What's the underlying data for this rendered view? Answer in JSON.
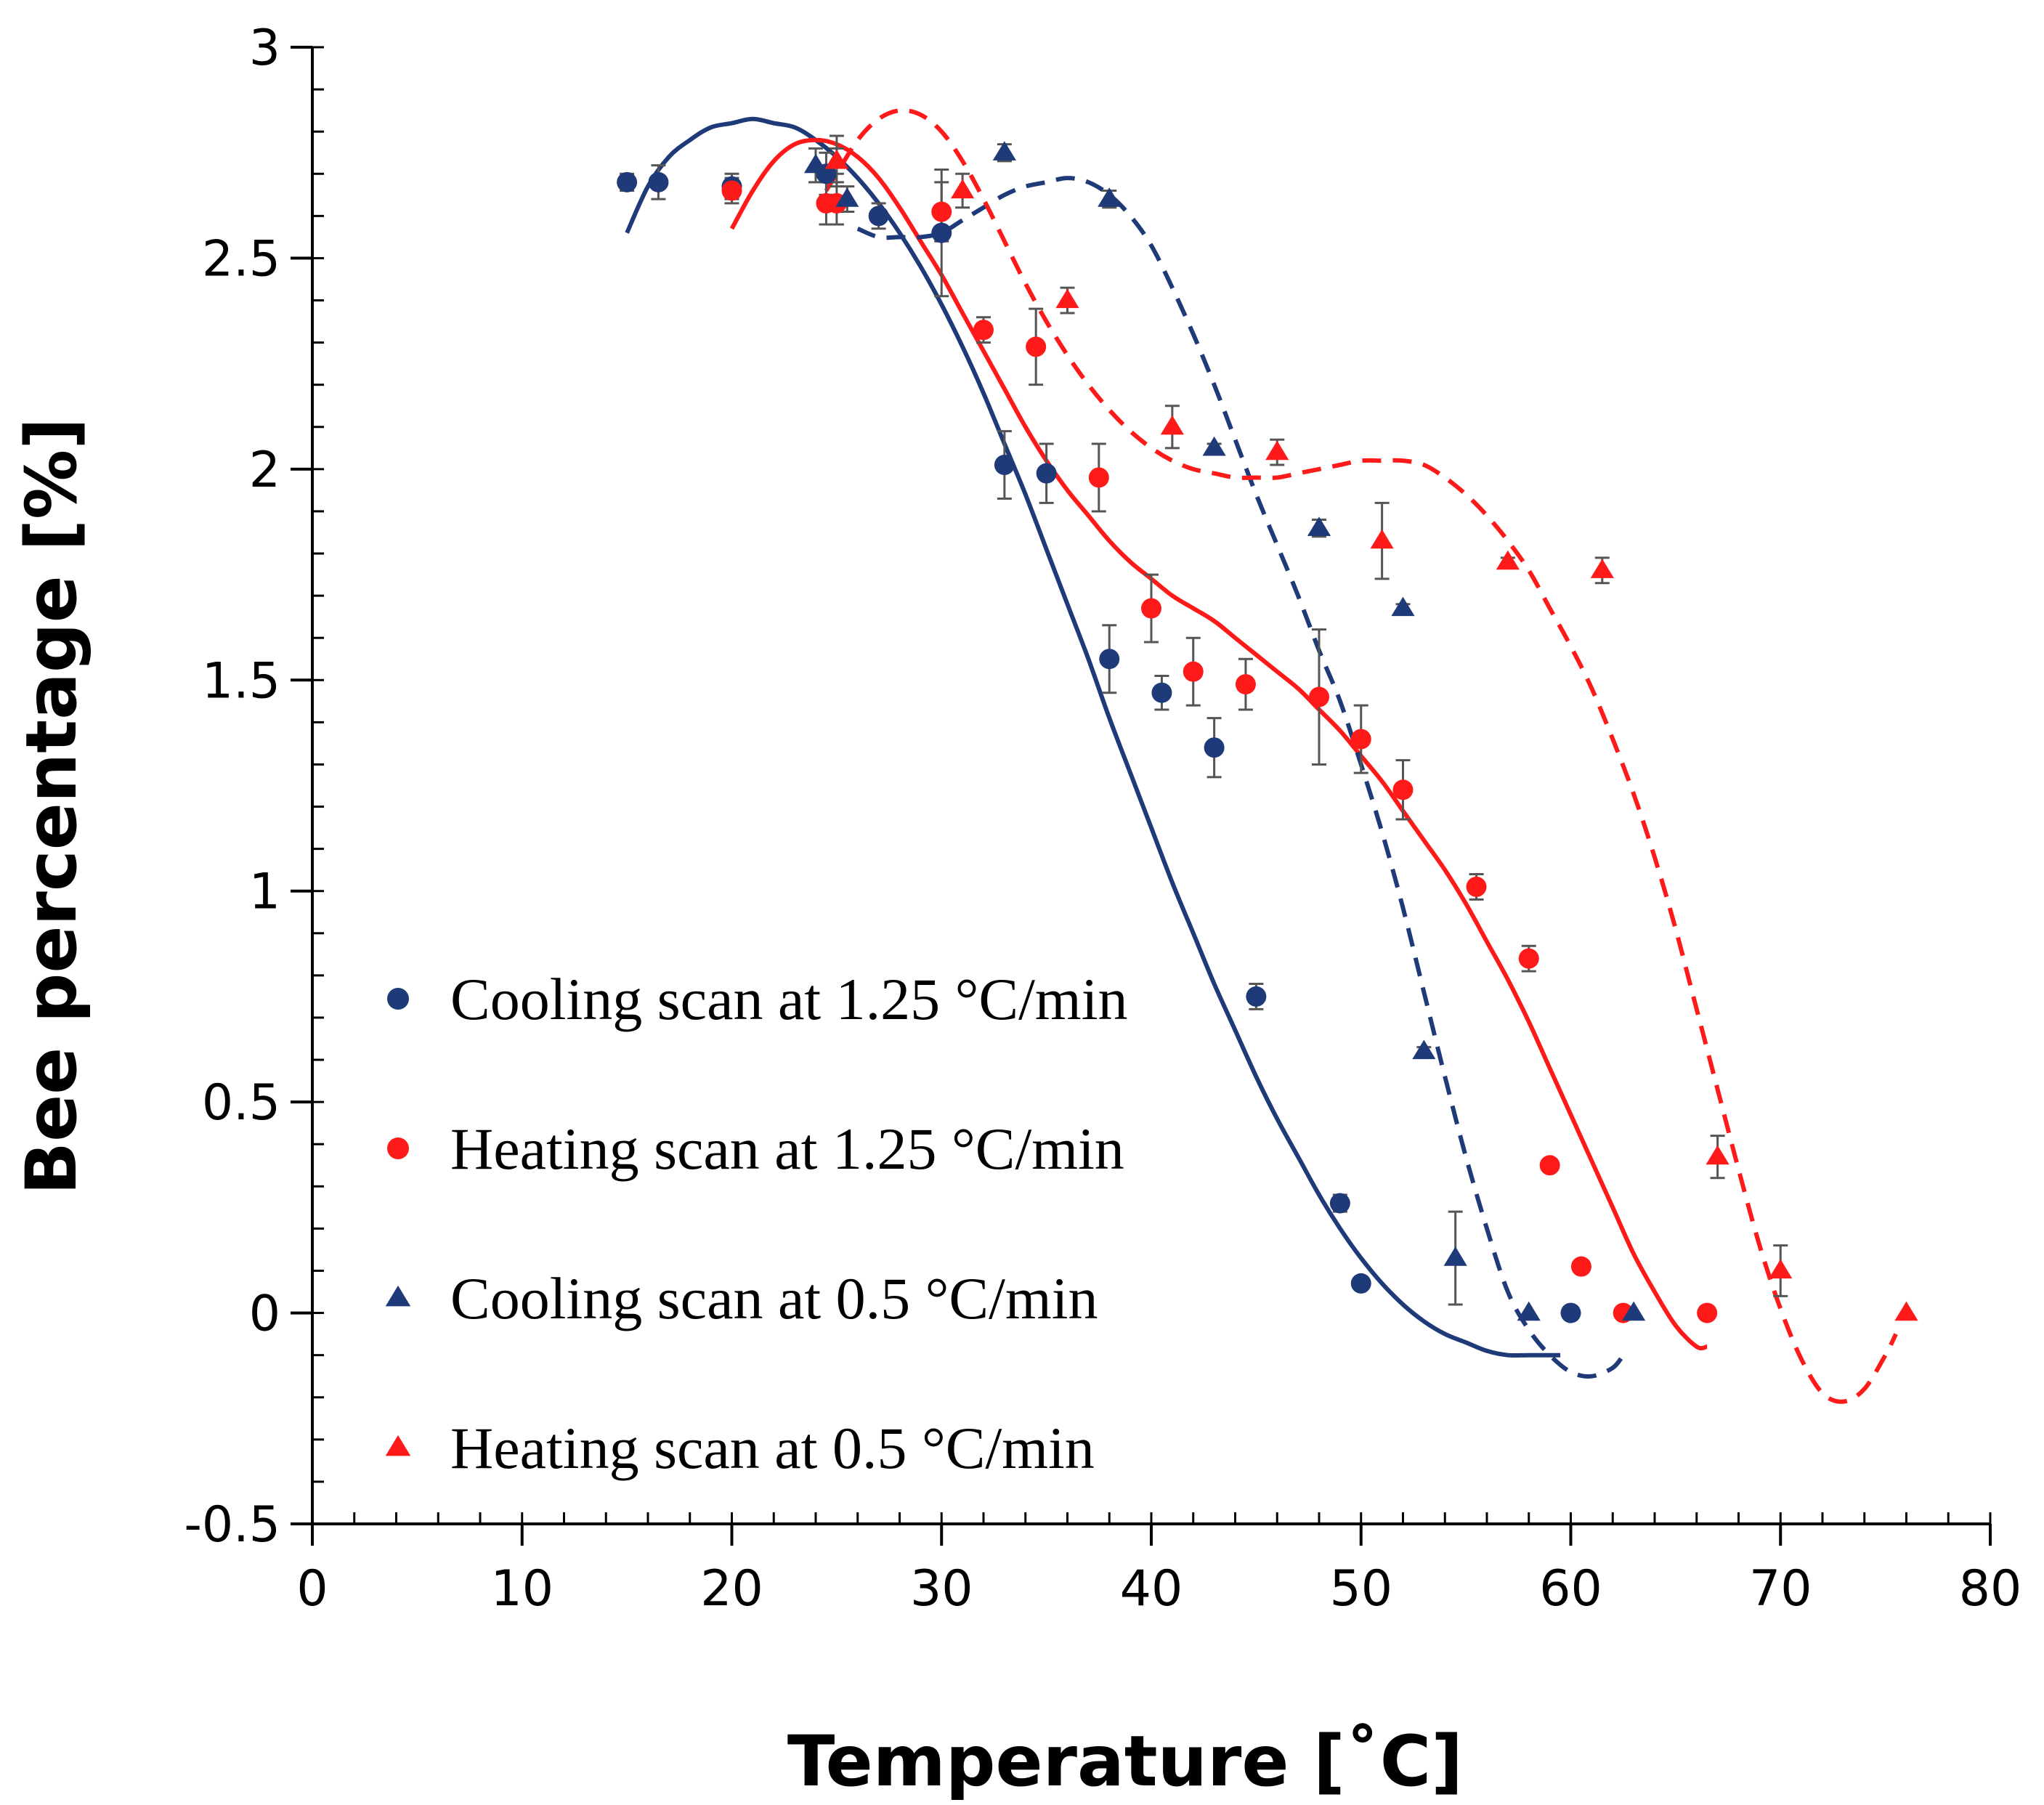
{
  "chart_data": {
    "type": "scatter",
    "title": "",
    "xlabel": "Temperature [˚C]",
    "ylabel": "Bee percentage [%]",
    "xlim": [
      0,
      80
    ],
    "ylim": [
      -0.5,
      3
    ],
    "x_ticks": [
      0,
      10,
      20,
      30,
      40,
      50,
      60,
      70,
      80
    ],
    "x_tick_labels": [
      "0",
      "10",
      "20",
      "30",
      "40",
      "50",
      "60",
      "70",
      "80"
    ],
    "y_ticks": [
      -0.5,
      0,
      0.5,
      1,
      1.5,
      2,
      2.5,
      3
    ],
    "y_tick_labels": [
      "-0.5",
      "0",
      "0.5",
      "1",
      "1.5",
      "2",
      "2.5",
      "3"
    ],
    "grid": false,
    "legend_position": "bottom-left",
    "series": [
      {
        "name": "Cooling scan at 1.25 °C/min",
        "color": "#1f3a78",
        "marker": "circle",
        "fit_style": "solid",
        "points": [
          {
            "x": 15.0,
            "y": 2.68,
            "err": 0.02
          },
          {
            "x": 16.5,
            "y": 2.68,
            "err": 0.04
          },
          {
            "x": 20.0,
            "y": 2.67,
            "err": 0.03
          },
          {
            "x": 24.5,
            "y": 2.7,
            "err": 0.05
          },
          {
            "x": 27.0,
            "y": 2.6,
            "err": 0.03
          },
          {
            "x": 30.0,
            "y": 2.56,
            "err": 0.15
          },
          {
            "x": 33.0,
            "y": 2.01,
            "err": 0.08
          },
          {
            "x": 35.0,
            "y": 1.99,
            "err": 0.07
          },
          {
            "x": 38.0,
            "y": 1.55,
            "err": 0.08
          },
          {
            "x": 40.5,
            "y": 1.47,
            "err": 0.04
          },
          {
            "x": 43.0,
            "y": 1.34,
            "err": 0.07
          },
          {
            "x": 45.0,
            "y": 0.75,
            "err": 0.03
          },
          {
            "x": 49.0,
            "y": 0.26,
            "err": 0.02
          },
          {
            "x": 50.0,
            "y": 0.07,
            "err": 0.0
          },
          {
            "x": 60.0,
            "y": 0.0,
            "err": 0.0
          }
        ],
        "fit": [
          [
            15,
            2.56
          ],
          [
            16,
            2.67
          ],
          [
            17,
            2.74
          ],
          [
            18,
            2.78
          ],
          [
            19,
            2.81
          ],
          [
            20,
            2.82
          ],
          [
            21,
            2.83
          ],
          [
            22,
            2.82
          ],
          [
            23,
            2.81
          ],
          [
            24,
            2.78
          ],
          [
            25,
            2.74
          ],
          [
            26,
            2.69
          ],
          [
            27,
            2.63
          ],
          [
            28,
            2.56
          ],
          [
            29,
            2.48
          ],
          [
            30,
            2.39
          ],
          [
            31,
            2.29
          ],
          [
            32,
            2.18
          ],
          [
            33,
            2.06
          ],
          [
            34,
            1.94
          ],
          [
            35,
            1.81
          ],
          [
            36,
            1.68
          ],
          [
            37,
            1.55
          ],
          [
            38,
            1.41
          ],
          [
            39,
            1.28
          ],
          [
            40,
            1.15
          ],
          [
            41,
            1.02
          ],
          [
            42,
            0.9
          ],
          [
            43,
            0.78
          ],
          [
            44,
            0.67
          ],
          [
            45,
            0.56
          ],
          [
            46,
            0.46
          ],
          [
            47,
            0.37
          ],
          [
            48,
            0.28
          ],
          [
            49,
            0.2
          ],
          [
            50,
            0.13
          ],
          [
            51,
            0.07
          ],
          [
            52,
            0.02
          ],
          [
            53,
            -0.02
          ],
          [
            54,
            -0.05
          ],
          [
            55,
            -0.07
          ],
          [
            56,
            -0.09
          ],
          [
            57,
            -0.1
          ],
          [
            58,
            -0.1
          ],
          [
            59,
            -0.1
          ],
          [
            59.5,
            -0.1
          ]
        ]
      },
      {
        "name": "Heating scan at 1.25 °C/min",
        "color": "#ff1a1a",
        "marker": "circle",
        "fit_style": "solid",
        "points": [
          {
            "x": 20.0,
            "y": 2.66,
            "err": 0.03
          },
          {
            "x": 24.5,
            "y": 2.63,
            "err": 0.05
          },
          {
            "x": 25.0,
            "y": 2.63,
            "err": 0.05
          },
          {
            "x": 30.0,
            "y": 2.61,
            "err": 0.07
          },
          {
            "x": 32.0,
            "y": 2.33,
            "err": 0.03
          },
          {
            "x": 34.5,
            "y": 2.29,
            "err": 0.09
          },
          {
            "x": 37.5,
            "y": 1.98,
            "err": 0.08
          },
          {
            "x": 40.0,
            "y": 1.67,
            "err": 0.08
          },
          {
            "x": 42.0,
            "y": 1.52,
            "err": 0.08
          },
          {
            "x": 44.5,
            "y": 1.49,
            "err": 0.06
          },
          {
            "x": 48.0,
            "y": 1.46,
            "err": 0.16
          },
          {
            "x": 50.0,
            "y": 1.36,
            "err": 0.08
          },
          {
            "x": 52.0,
            "y": 1.24,
            "err": 0.07
          },
          {
            "x": 55.5,
            "y": 1.01,
            "err": 0.03
          },
          {
            "x": 58.0,
            "y": 0.84,
            "err": 0.03
          },
          {
            "x": 59.0,
            "y": 0.35,
            "err": 0.0
          },
          {
            "x": 60.5,
            "y": 0.11,
            "err": 0.0
          },
          {
            "x": 62.5,
            "y": 0.0,
            "err": 0.0
          },
          {
            "x": 66.5,
            "y": 0.0,
            "err": 0.0
          }
        ],
        "fit": [
          [
            20,
            2.57
          ],
          [
            21,
            2.66
          ],
          [
            22,
            2.73
          ],
          [
            23,
            2.77
          ],
          [
            24,
            2.78
          ],
          [
            25,
            2.77
          ],
          [
            26,
            2.74
          ],
          [
            27,
            2.69
          ],
          [
            28,
            2.62
          ],
          [
            29,
            2.54
          ],
          [
            30,
            2.46
          ],
          [
            31,
            2.37
          ],
          [
            32,
            2.28
          ],
          [
            33,
            2.19
          ],
          [
            34,
            2.1
          ],
          [
            35,
            2.02
          ],
          [
            36,
            1.95
          ],
          [
            37,
            1.89
          ],
          [
            38,
            1.83
          ],
          [
            39,
            1.78
          ],
          [
            40,
            1.74
          ],
          [
            41,
            1.7
          ],
          [
            42,
            1.67
          ],
          [
            43,
            1.64
          ],
          [
            44,
            1.6
          ],
          [
            45,
            1.56
          ],
          [
            46,
            1.52
          ],
          [
            47,
            1.48
          ],
          [
            48,
            1.43
          ],
          [
            49,
            1.38
          ],
          [
            50,
            1.32
          ],
          [
            51,
            1.26
          ],
          [
            52,
            1.19
          ],
          [
            53,
            1.12
          ],
          [
            54,
            1.05
          ],
          [
            55,
            0.97
          ],
          [
            56,
            0.88
          ],
          [
            57,
            0.79
          ],
          [
            58,
            0.69
          ],
          [
            59,
            0.58
          ],
          [
            60,
            0.47
          ],
          [
            61,
            0.36
          ],
          [
            62,
            0.25
          ],
          [
            63,
            0.14
          ],
          [
            64,
            0.05
          ],
          [
            65,
            -0.03
          ],
          [
            66,
            -0.08
          ],
          [
            66.5,
            -0.08
          ]
        ]
      },
      {
        "name": "Cooling scan at 0.5 °C/min",
        "color": "#1f3a78",
        "marker": "triangle",
        "fit_style": "dashed",
        "points": [
          {
            "x": 24.0,
            "y": 2.72,
            "err": 0.04
          },
          {
            "x": 25.0,
            "y": 2.73,
            "err": 0.03
          },
          {
            "x": 25.5,
            "y": 2.64,
            "err": 0.03
          },
          {
            "x": 33.0,
            "y": 2.75,
            "err": 0.02
          },
          {
            "x": 38.0,
            "y": 2.64,
            "err": 0.02
          },
          {
            "x": 43.0,
            "y": 2.05,
            "err": 0.01
          },
          {
            "x": 48.0,
            "y": 1.86,
            "err": 0.02
          },
          {
            "x": 52.0,
            "y": 1.67,
            "err": 0.01
          },
          {
            "x": 53.0,
            "y": 0.62,
            "err": 0.01
          },
          {
            "x": 54.5,
            "y": 0.13,
            "err": 0.11
          },
          {
            "x": 58.0,
            "y": 0.0,
            "err": 0.0
          },
          {
            "x": 63.0,
            "y": 0.0,
            "err": 0.0
          }
        ],
        "fit": [
          [
            26,
            2.57
          ],
          [
            27,
            2.55
          ],
          [
            28,
            2.55
          ],
          [
            29,
            2.55
          ],
          [
            30,
            2.56
          ],
          [
            31,
            2.59
          ],
          [
            32,
            2.62
          ],
          [
            33,
            2.65
          ],
          [
            34,
            2.67
          ],
          [
            35,
            2.68
          ],
          [
            36,
            2.69
          ],
          [
            37,
            2.68
          ],
          [
            38,
            2.65
          ],
          [
            39,
            2.6
          ],
          [
            40,
            2.53
          ],
          [
            41,
            2.43
          ],
          [
            42,
            2.32
          ],
          [
            43,
            2.2
          ],
          [
            44,
            2.07
          ],
          [
            45,
            1.94
          ],
          [
            46,
            1.82
          ],
          [
            47,
            1.7
          ],
          [
            48,
            1.57
          ],
          [
            49,
            1.45
          ],
          [
            50,
            1.3
          ],
          [
            51,
            1.14
          ],
          [
            52,
            0.96
          ],
          [
            53,
            0.76
          ],
          [
            54,
            0.56
          ],
          [
            55,
            0.37
          ],
          [
            56,
            0.2
          ],
          [
            57,
            0.05
          ],
          [
            58,
            -0.04
          ],
          [
            59,
            -0.1
          ],
          [
            60,
            -0.14
          ],
          [
            61,
            -0.15
          ],
          [
            62,
            -0.13
          ],
          [
            62.5,
            -0.1
          ]
        ]
      },
      {
        "name": "Heating scan at 0.5 °C/min",
        "color": "#ff1a1a",
        "marker": "triangle",
        "fit_style": "dashed",
        "points": [
          {
            "x": 25.0,
            "y": 2.73,
            "err": 0.06
          },
          {
            "x": 31.0,
            "y": 2.66,
            "err": 0.04
          },
          {
            "x": 36.0,
            "y": 2.4,
            "err": 0.03
          },
          {
            "x": 41.0,
            "y": 2.1,
            "err": 0.05
          },
          {
            "x": 46.0,
            "y": 2.04,
            "err": 0.03
          },
          {
            "x": 51.0,
            "y": 1.83,
            "err": 0.09
          },
          {
            "x": 57.0,
            "y": 1.78,
            "err": 0.01
          },
          {
            "x": 61.5,
            "y": 1.76,
            "err": 0.03
          },
          {
            "x": 67.0,
            "y": 0.37,
            "err": 0.05
          },
          {
            "x": 70.0,
            "y": 0.1,
            "err": 0.06
          },
          {
            "x": 76.0,
            "y": 0.0,
            "err": 0.0
          }
        ],
        "fit": [
          [
            24.5,
            2.66
          ],
          [
            25,
            2.7
          ],
          [
            26,
            2.78
          ],
          [
            27,
            2.83
          ],
          [
            28,
            2.85
          ],
          [
            29,
            2.84
          ],
          [
            30,
            2.8
          ],
          [
            31,
            2.73
          ],
          [
            32,
            2.64
          ],
          [
            33,
            2.54
          ],
          [
            34,
            2.44
          ],
          [
            35,
            2.35
          ],
          [
            36,
            2.27
          ],
          [
            37,
            2.2
          ],
          [
            38,
            2.14
          ],
          [
            39,
            2.09
          ],
          [
            40,
            2.05
          ],
          [
            41,
            2.02
          ],
          [
            42,
            2.0
          ],
          [
            43,
            1.99
          ],
          [
            44,
            1.98
          ],
          [
            45,
            1.98
          ],
          [
            46,
            1.98
          ],
          [
            47,
            1.99
          ],
          [
            48,
            2.0
          ],
          [
            49,
            2.01
          ],
          [
            50,
            2.02
          ],
          [
            51,
            2.02
          ],
          [
            52,
            2.02
          ],
          [
            53,
            2.01
          ],
          [
            54,
            1.98
          ],
          [
            55,
            1.94
          ],
          [
            56,
            1.89
          ],
          [
            57,
            1.83
          ],
          [
            58,
            1.76
          ],
          [
            59,
            1.67
          ],
          [
            60,
            1.58
          ],
          [
            61,
            1.48
          ],
          [
            62,
            1.36
          ],
          [
            63,
            1.23
          ],
          [
            64,
            1.08
          ],
          [
            65,
            0.91
          ],
          [
            66,
            0.72
          ],
          [
            67,
            0.53
          ],
          [
            68,
            0.34
          ],
          [
            69,
            0.16
          ],
          [
            70,
            0.01
          ],
          [
            71,
            -0.11
          ],
          [
            72,
            -0.19
          ],
          [
            73,
            -0.21
          ],
          [
            74,
            -0.18
          ],
          [
            75,
            -0.1
          ],
          [
            75.5,
            -0.05
          ]
        ]
      }
    ]
  }
}
